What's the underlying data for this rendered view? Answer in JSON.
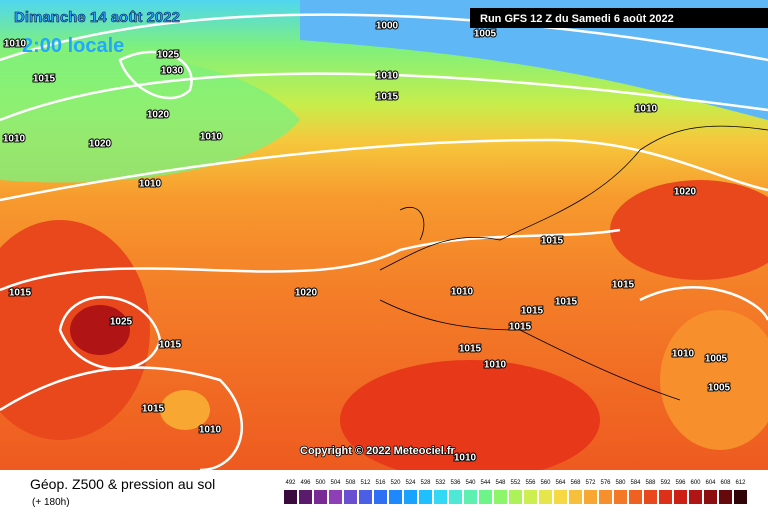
{
  "header": {
    "date": "Dimanche 14 août 2022",
    "local_time": "2:00 locale",
    "run": "Run GFS 12 Z du Samedi 6 août 2022"
  },
  "copyright": "Copyright © 2022 Meteociel.fr",
  "footer": {
    "title": "Géop. Z500 & pression au sol",
    "lead": "(+ 180h)"
  },
  "isobar_labels": [
    "1010",
    "1025",
    "1030",
    "1015",
    "1020",
    "1010",
    "1020",
    "1010",
    "1010",
    "1000",
    "1005",
    "1010",
    "1015",
    "1010",
    "1020",
    "1015",
    "1010",
    "1015",
    "1015",
    "1015",
    "1015",
    "1020",
    "1015",
    "1025",
    "1015",
    "1015",
    "1010",
    "1010",
    "1005",
    "1005",
    "1015",
    "1010",
    "1010"
  ],
  "scale": {
    "values": [
      492,
      496,
      500,
      504,
      508,
      512,
      516,
      520,
      524,
      528,
      532,
      536,
      540,
      544,
      548,
      552,
      556,
      560,
      564,
      568,
      572,
      576,
      580,
      584,
      588,
      592,
      596,
      600,
      604,
      608,
      612
    ],
    "colors": [
      "#3a0a3f",
      "#5b1a6b",
      "#7a2a95",
      "#8e3fb7",
      "#6a4fd0",
      "#4a5ee6",
      "#2f6ff5",
      "#1e88ff",
      "#19a3ff",
      "#1fc0ff",
      "#33d8f5",
      "#4de8d6",
      "#5ef0b0",
      "#6ef58a",
      "#8cf56a",
      "#aef25a",
      "#ccee4e",
      "#e6e64a",
      "#f5d842",
      "#f8c03a",
      "#f8a832",
      "#f7902c",
      "#f47826",
      "#f06020",
      "#e8481c",
      "#de3018",
      "#cc1f16",
      "#b01414",
      "#8c0e10",
      "#66080c",
      "#300406"
    ]
  }
}
